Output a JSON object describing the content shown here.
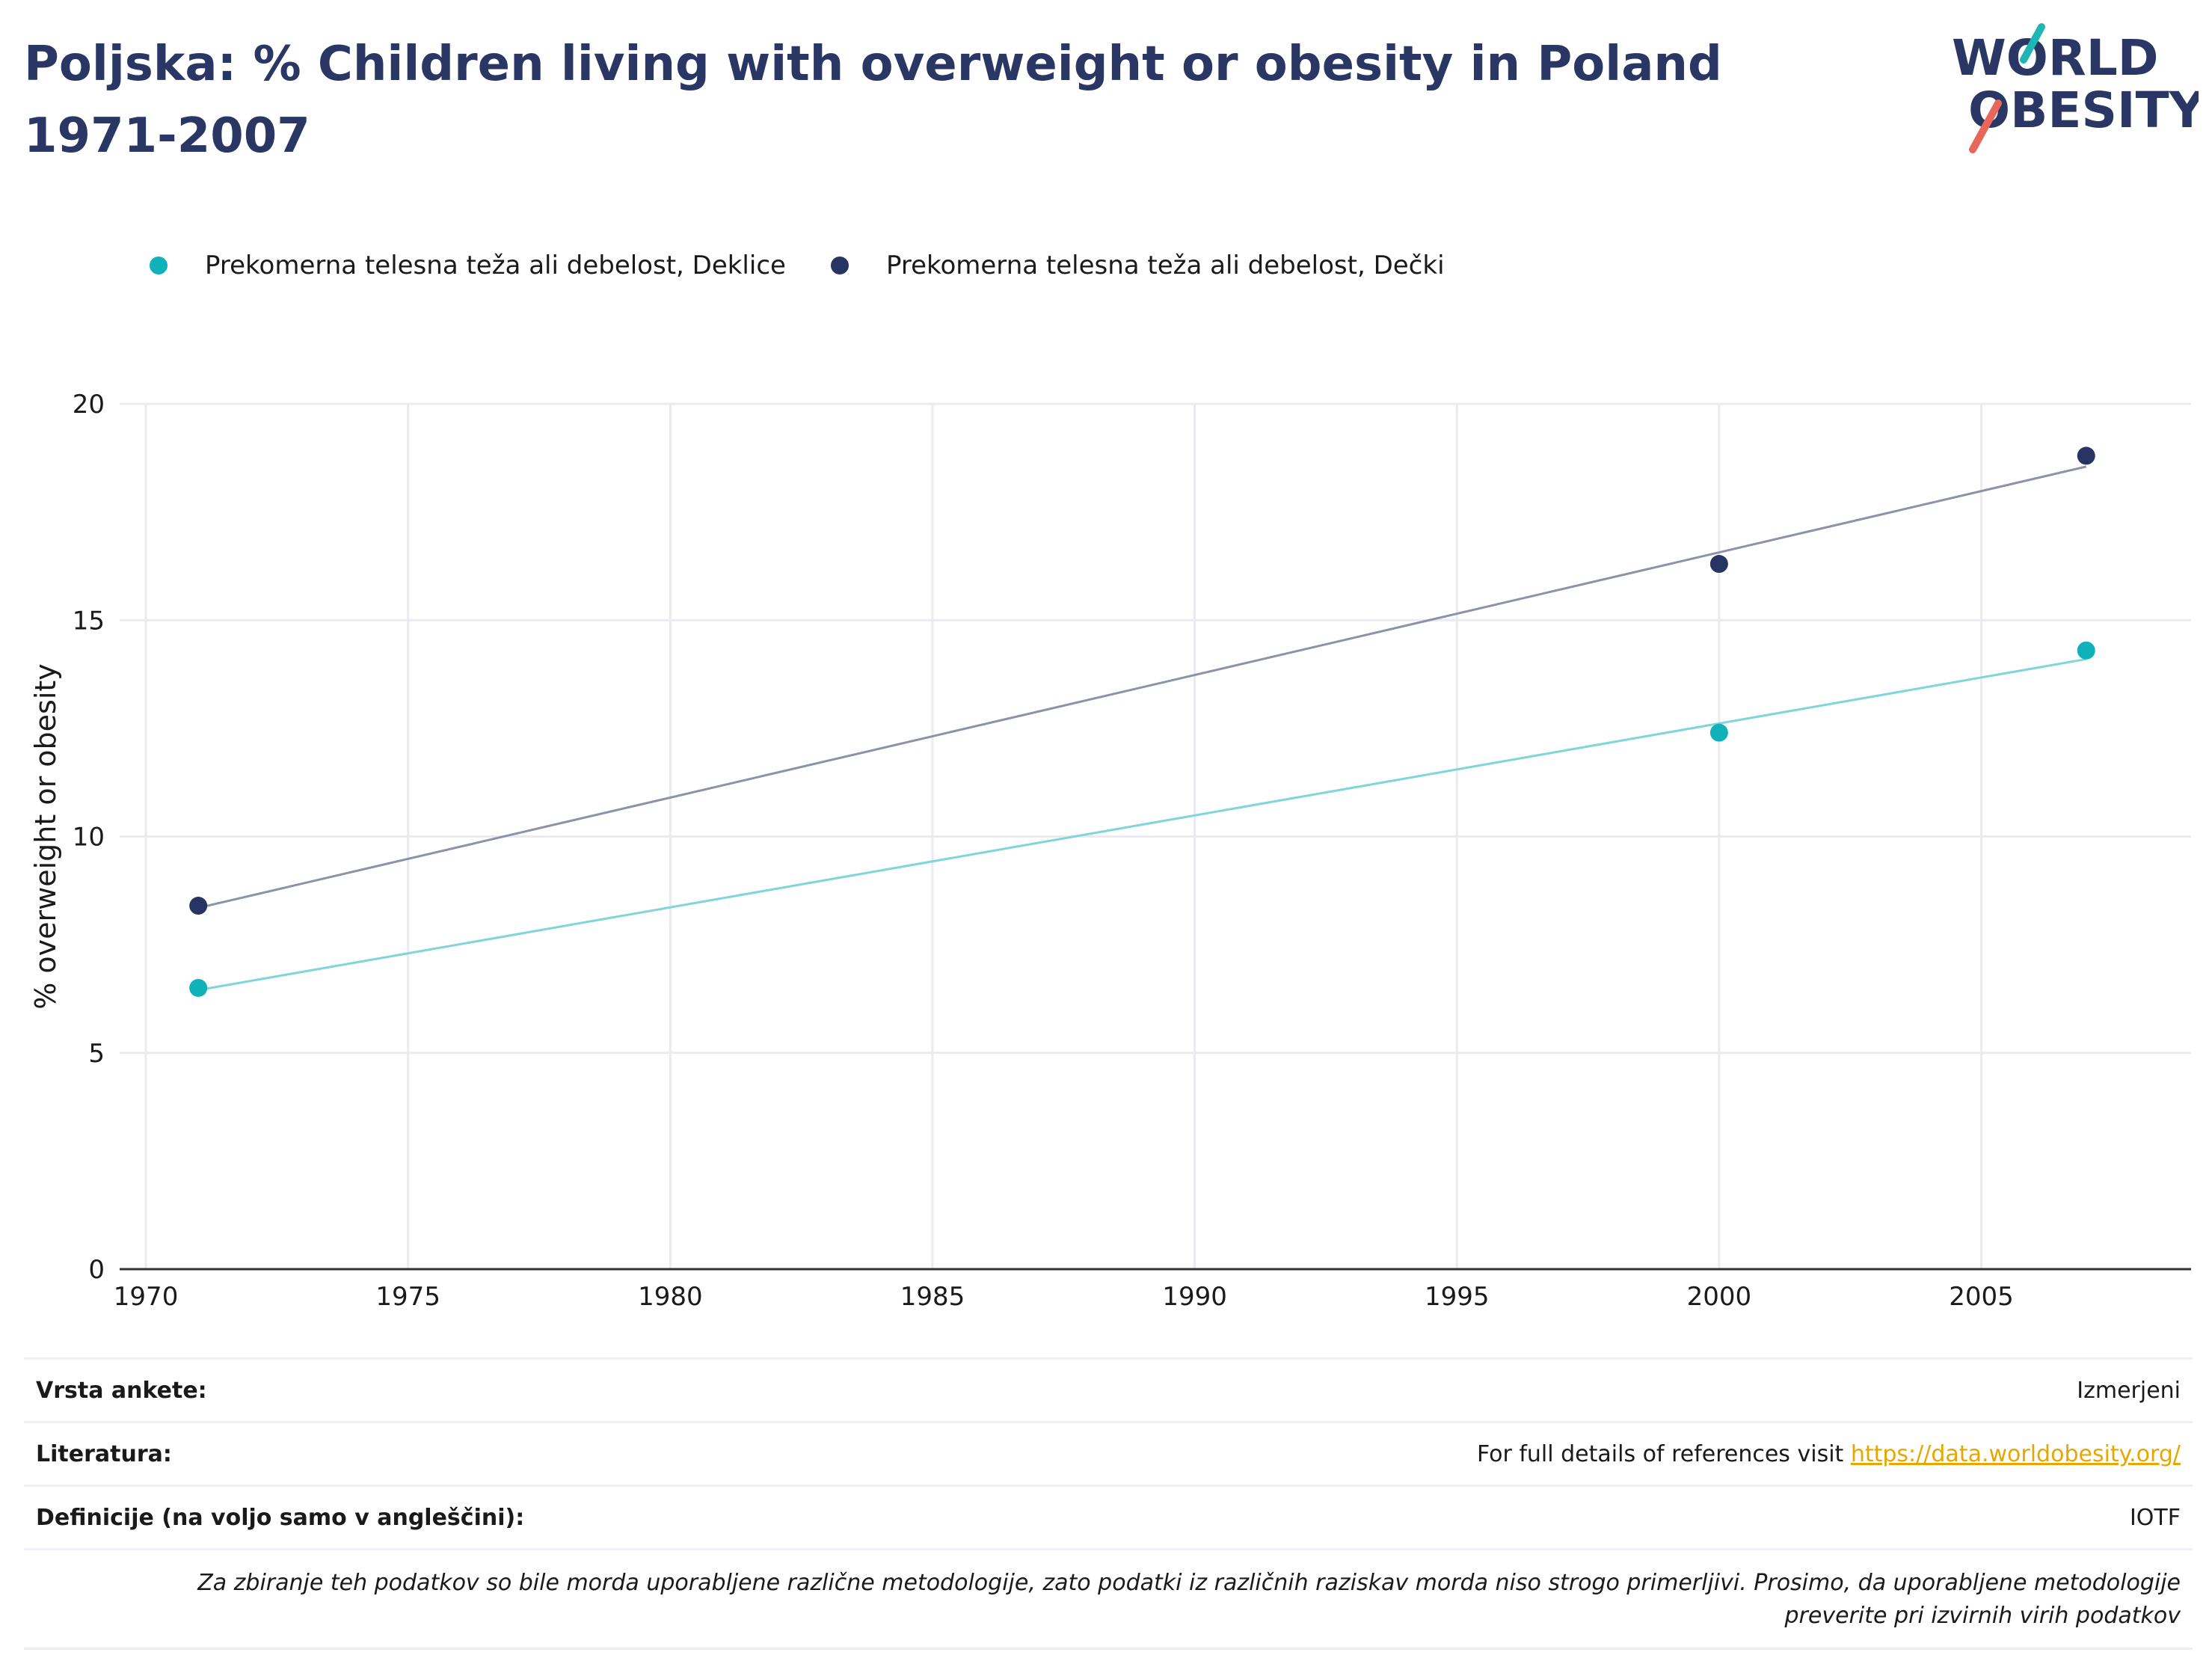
{
  "title": "Poljska: % Children living with overweight or obesity in Poland 1971-2007",
  "logo": {
    "line1": "WORLD",
    "line2": "OBESITY",
    "text_color": "#2a3764",
    "accent_teal": "#1fb5b5",
    "accent_red": "#e8665a"
  },
  "colors": {
    "girls": "#10b1bb",
    "boys": "#283562",
    "girls_line": "#7fd5d9",
    "boys_line": "#8b93aa",
    "grid": "#e9ebf1",
    "axis": "#333333"
  },
  "chart_data": {
    "type": "scatter",
    "ylabel": "% overweight or obesity",
    "xlabel": "",
    "xlim": [
      1969.5,
      2009
    ],
    "ylim": [
      0,
      20
    ],
    "x_ticks": [
      1970,
      1975,
      1980,
      1985,
      1990,
      1995,
      2000,
      2005
    ],
    "y_ticks": [
      0,
      5,
      10,
      15,
      20
    ],
    "grid": true,
    "legend_position": "top-left",
    "series": [
      {
        "name": "Prekomerna telesna teža ali debelost, Deklice",
        "x": [
          1971,
          2000,
          2007
        ],
        "y": [
          6.5,
          12.4,
          14.3
        ],
        "trendline": {
          "x": [
            1971,
            2007
          ],
          "y": [
            6.45,
            14.1
          ]
        }
      },
      {
        "name": "Prekomerna telesna teža ali debelost, Dečki",
        "x": [
          1971,
          2000,
          2007
        ],
        "y": [
          8.4,
          16.3,
          18.8
        ],
        "trendline": {
          "x": [
            1971,
            2007
          ],
          "y": [
            8.35,
            18.55
          ]
        }
      }
    ]
  },
  "footer": {
    "survey_label": "Vrsta ankete:",
    "survey_value": "Izmerjeni",
    "literature_label": "Literatura:",
    "literature_prefix": "For full details of references visit ",
    "literature_link": "https://data.worldobesity.org/",
    "definitions_label": "Definicije (na voljo samo v angleščini):",
    "definitions_value": "IOTF",
    "note_line1": "Za zbiranje teh podatkov so bile morda uporabljene različne metodologije, zato podatki iz različnih raziskav morda niso strogo primerljivi. Prosimo, da uporabljene metodologije",
    "note_line2": "preverite pri izvirnih virih podatkov"
  }
}
